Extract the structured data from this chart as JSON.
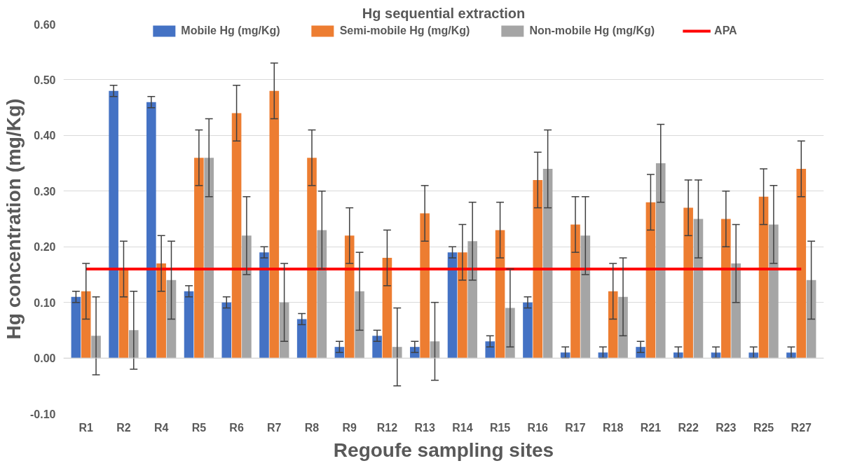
{
  "chart_data": {
    "type": "bar",
    "title": "Hg sequential extraction",
    "xlabel": "Regoufe sampling sites",
    "ylabel": "Hg concentration (mg/Kg)",
    "categories": [
      "R1",
      "R2",
      "R4",
      "R5",
      "R6",
      "R7",
      "R8",
      "R9",
      "R12",
      "R13",
      "R14",
      "R15",
      "R16",
      "R17",
      "R18",
      "R21",
      "R22",
      "R23",
      "R25",
      "R27"
    ],
    "series": [
      {
        "name": "Mobile Hg (mg/Kg)",
        "color": "#4472c4",
        "values": [
          0.11,
          0.48,
          0.46,
          0.12,
          0.1,
          0.19,
          0.07,
          0.02,
          0.04,
          0.02,
          0.19,
          0.03,
          0.1,
          0.01,
          0.01,
          0.02,
          0.01,
          0.01,
          0.01,
          0.01
        ],
        "errors": [
          0.01,
          0.01,
          0.01,
          0.01,
          0.01,
          0.01,
          0.01,
          0.01,
          0.01,
          0.01,
          0.01,
          0.01,
          0.01,
          0.01,
          0.01,
          0.01,
          0.01,
          0.01,
          0.01,
          0.01
        ]
      },
      {
        "name": "Semi-mobile Hg (mg/Kg)",
        "color": "#ed7d31",
        "values": [
          0.12,
          0.16,
          0.17,
          0.36,
          0.44,
          0.48,
          0.36,
          0.22,
          0.18,
          0.26,
          0.19,
          0.23,
          0.32,
          0.24,
          0.12,
          0.28,
          0.27,
          0.25,
          0.29,
          0.34
        ],
        "errors": [
          0.05,
          0.05,
          0.05,
          0.05,
          0.05,
          0.05,
          0.05,
          0.05,
          0.05,
          0.05,
          0.05,
          0.05,
          0.05,
          0.05,
          0.05,
          0.05,
          0.05,
          0.05,
          0.05,
          0.05
        ]
      },
      {
        "name": "Non-mobile Hg (mg/Kg)",
        "color": "#a5a5a5",
        "values": [
          0.04,
          0.05,
          0.14,
          0.36,
          0.22,
          0.1,
          0.23,
          0.12,
          0.02,
          0.03,
          0.21,
          0.09,
          0.34,
          0.22,
          0.11,
          0.35,
          0.25,
          0.17,
          0.24,
          0.14
        ],
        "errors": [
          0.07,
          0.07,
          0.07,
          0.07,
          0.07,
          0.07,
          0.07,
          0.07,
          0.07,
          0.07,
          0.07,
          0.07,
          0.07,
          0.07,
          0.07,
          0.07,
          0.07,
          0.07,
          0.07,
          0.07
        ]
      },
      {
        "name": "APA",
        "type": "line",
        "color": "#ff0000",
        "values": [
          0.16,
          0.16,
          0.16,
          0.16,
          0.16,
          0.16,
          0.16,
          0.16,
          0.16,
          0.16,
          0.16,
          0.16,
          0.16,
          0.16,
          0.16,
          0.16,
          0.16,
          0.16,
          0.16,
          0.16
        ]
      }
    ],
    "ylim": [
      -0.1,
      0.6
    ],
    "yticks": [
      {
        "value": -0.1,
        "label": "-0.10"
      },
      {
        "value": 0,
        "label": "0.00"
      },
      {
        "value": 0.1,
        "label": "0.10"
      },
      {
        "value": 0.2,
        "label": "0.20"
      },
      {
        "value": 0.3,
        "label": "0.30"
      },
      {
        "value": 0.4,
        "label": "0.40"
      },
      {
        "value": 0.5,
        "label": "0.50"
      },
      {
        "value": 0.6,
        "label": "0.60"
      }
    ],
    "grid": "y",
    "legend": "top"
  }
}
